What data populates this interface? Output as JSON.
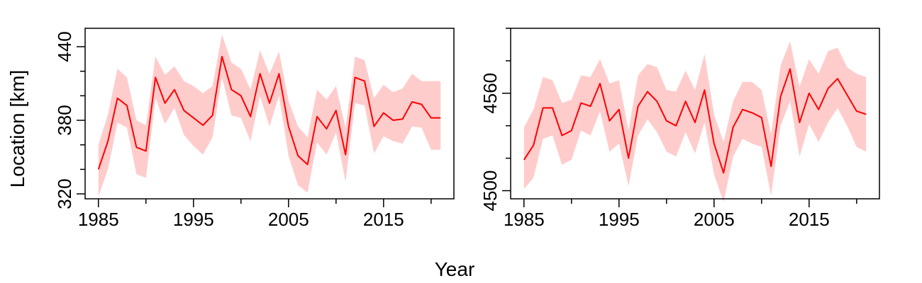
{
  "figure": {
    "ylabel": "Location [km]",
    "xlabel": "Year"
  },
  "chart_data": [
    {
      "type": "line",
      "title": "",
      "x": [
        1985,
        1986,
        1987,
        1988,
        1989,
        1990,
        1991,
        1992,
        1993,
        1994,
        1995,
        1996,
        1997,
        1998,
        1999,
        2000,
        2001,
        2002,
        2003,
        2004,
        2005,
        2006,
        2007,
        2008,
        2009,
        2010,
        2011,
        2012,
        2013,
        2014,
        2015,
        2016,
        2017,
        2018,
        2019,
        2020,
        2021
      ],
      "series": [
        {
          "values": [
            340,
            363,
            398,
            392,
            358,
            355,
            415,
            394,
            405,
            388,
            382,
            376,
            384,
            432,
            405,
            400,
            383,
            418,
            394,
            418,
            375,
            351,
            344,
            383,
            373,
            388,
            352,
            415,
            412,
            375,
            386,
            380,
            381,
            395,
            393,
            382,
            382
          ],
          "upper": [
            360,
            385,
            422,
            415,
            380,
            376,
            432,
            417,
            424,
            412,
            408,
            402,
            408,
            450,
            427,
            422,
            405,
            437,
            418,
            436,
            396,
            375,
            366,
            405,
            397,
            408,
            374,
            432,
            429,
            398,
            409,
            403,
            406,
            418,
            412,
            412,
            412
          ],
          "lower": [
            318,
            340,
            378,
            374,
            336,
            333,
            398,
            377,
            390,
            368,
            359,
            352,
            366,
            415,
            384,
            382,
            363,
            400,
            375,
            400,
            351,
            327,
            321,
            362,
            352,
            370,
            330,
            394,
            392,
            353,
            367,
            363,
            361,
            375,
            374,
            356,
            356
          ],
          "color": "#ff0000",
          "band_color": "#ffcccc"
        }
      ],
      "xticks": [
        1985,
        1995,
        2005,
        2015
      ],
      "xlim": [
        1983.6,
        2022.4
      ],
      "yticks": [
        320,
        380,
        440
      ],
      "ylim": [
        316,
        455
      ]
    },
    {
      "type": "line",
      "title": "",
      "x": [
        1985,
        1986,
        1987,
        1988,
        1989,
        1990,
        1991,
        1992,
        1993,
        1994,
        1995,
        1996,
        1997,
        1998,
        1999,
        2000,
        2001,
        2002,
        2003,
        2004,
        2005,
        2006,
        2007,
        2008,
        2009,
        2010,
        2011,
        2012,
        2013,
        2014,
        2015,
        2016,
        2017,
        2018,
        2019,
        2020,
        2021
      ],
      "series": [
        {
          "values": [
            4519,
            4528,
            4551,
            4551,
            4534,
            4537,
            4554,
            4552,
            4566,
            4543,
            4550,
            4520,
            4552,
            4561,
            4555,
            4543,
            4540,
            4555,
            4542,
            4562,
            4529,
            4511,
            4539,
            4550,
            4548,
            4545,
            4515,
            4558,
            4575,
            4542,
            4560,
            4550,
            4563,
            4569,
            4559,
            4549,
            4547
          ],
          "upper": [
            4539,
            4550,
            4570,
            4568,
            4554,
            4556,
            4571,
            4570,
            4581,
            4566,
            4568,
            4537,
            4571,
            4578,
            4576,
            4562,
            4561,
            4574,
            4562,
            4584,
            4547,
            4530,
            4555,
            4567,
            4567,
            4562,
            4535,
            4577,
            4592,
            4564,
            4581,
            4572,
            4586,
            4588,
            4576,
            4572,
            4570
          ],
          "lower": [
            4501,
            4508,
            4532,
            4534,
            4516,
            4519,
            4537,
            4534,
            4549,
            4524,
            4529,
            4503,
            4534,
            4544,
            4536,
            4524,
            4521,
            4536,
            4523,
            4542,
            4510,
            4493,
            4521,
            4532,
            4529,
            4527,
            4497,
            4540,
            4555,
            4521,
            4541,
            4530,
            4542,
            4551,
            4540,
            4527,
            4524
          ]
        }
      ],
      "xticks": [
        1985,
        1995,
        2005,
        2015
      ],
      "xlim": [
        1983.6,
        2022.4
      ],
      "yticks": [
        4500,
        4560
      ],
      "ylim": [
        4495,
        4600
      ]
    }
  ]
}
